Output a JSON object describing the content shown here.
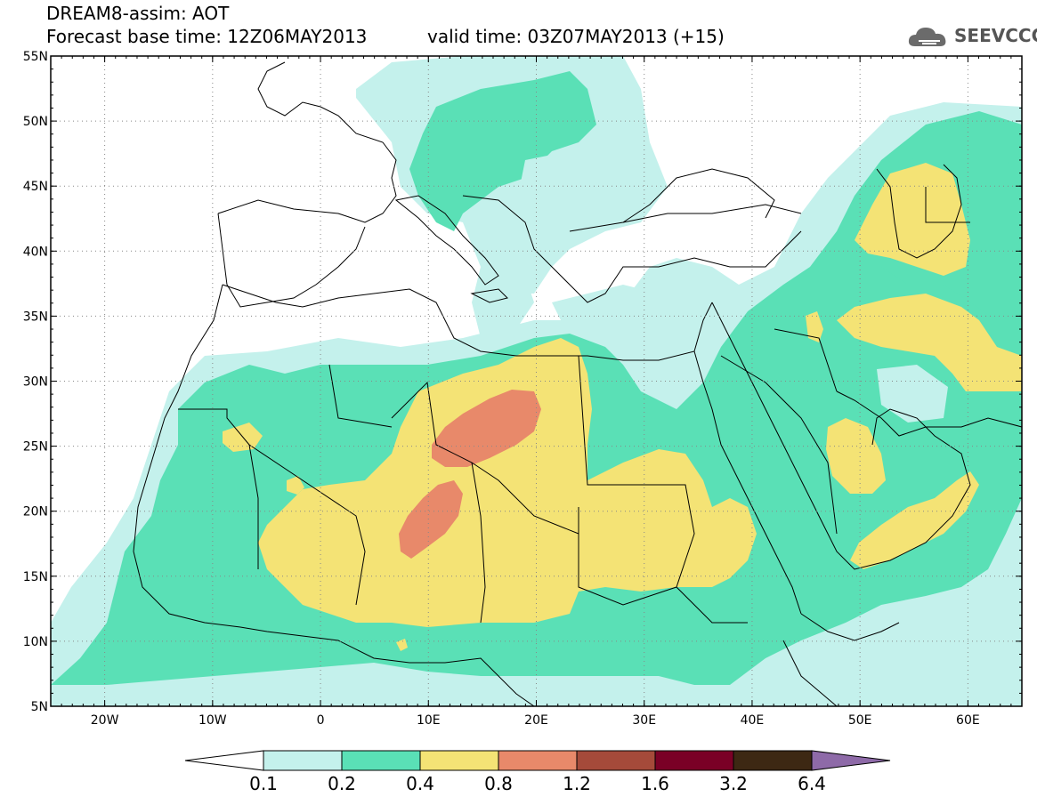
{
  "header": {
    "title_line1": "DREAM8-assim: AOT",
    "title_line2": "Forecast base time: 12Z06MAY2013",
    "valid_time": "valid time: 03Z07MAY2013 (+15)"
  },
  "logo": {
    "text": "SEEVCCC"
  },
  "map": {
    "lat_labels": [
      "55N",
      "50N",
      "45N",
      "40N",
      "35N",
      "30N",
      "25N",
      "20N",
      "15N",
      "10N",
      "5N"
    ],
    "lon_labels": [
      "20W",
      "10W",
      "0",
      "10E",
      "20E",
      "30E",
      "40E",
      "50E",
      "60E"
    ],
    "lat_values": [
      55,
      50,
      45,
      40,
      35,
      30,
      25,
      20,
      15,
      10,
      5
    ],
    "lon_values": [
      -20,
      -10,
      0,
      10,
      20,
      30,
      40,
      50,
      60
    ],
    "lon_range": [
      -25,
      65
    ],
    "lat_range": [
      5,
      55
    ],
    "grid": "dotted"
  },
  "legend": {
    "levels": [
      "0.1",
      "0.2",
      "0.4",
      "0.8",
      "1.2",
      "1.6",
      "3.2",
      "6.4"
    ],
    "colors": [
      "#ffffff",
      "#c4f1ec",
      "#5ae0b6",
      "#f4e375",
      "#e8896a",
      "#a54a3a",
      "#7a0026",
      "#3d2813",
      "#8e6aa8"
    ]
  }
}
